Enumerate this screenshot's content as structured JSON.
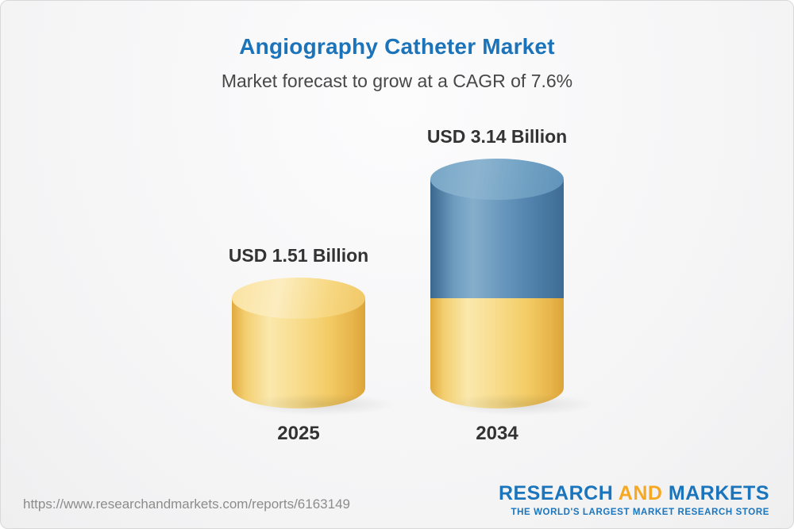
{
  "header": {
    "title": "Angiography Catheter Market",
    "subtitle": "Market forecast to grow at a CAGR of 7.6%"
  },
  "chart_data": {
    "type": "bar",
    "subtype": "3d-cylinder",
    "unit": "USD Billion",
    "cagr_percent": 7.6,
    "categories": [
      "2025",
      "2034"
    ],
    "values": [
      1.51,
      3.14
    ],
    "bars": [
      {
        "category": "2025",
        "label": "USD 1.51 Billion",
        "value": 1.51,
        "segments": [
          {
            "name": "base",
            "value": 1.51,
            "color": "#F6CF6D"
          }
        ]
      },
      {
        "category": "2034",
        "label": "USD 3.14 Billion",
        "value": 3.14,
        "segments": [
          {
            "name": "base",
            "value": 1.51,
            "color": "#F6CF6D"
          },
          {
            "name": "growth",
            "value": 1.63,
            "color": "#4F87B2"
          }
        ]
      }
    ],
    "title": "Angiography Catheter Market",
    "subtitle": "Market forecast to grow at a CAGR of 7.6%",
    "xlabel": "",
    "ylabel": "",
    "legend": "none",
    "grid": false,
    "ylim": [
      0,
      3.5
    ]
  },
  "footer": {
    "url": "https://www.researchandmarkets.com/reports/6163149",
    "logo": {
      "word1": "RESEARCH",
      "word2": " AND ",
      "word3": "MARKETS",
      "tagline": "THE WORLD'S LARGEST MARKET RESEARCH STORE"
    }
  },
  "colors": {
    "title_blue": "#1B73B9",
    "subtitle_gray": "#474747",
    "bar_yellow": "#F6CF6D",
    "bar_blue": "#4F87B2",
    "logo_blue": "#1B75BC",
    "logo_gold": "#F7A823",
    "url_gray": "#8C8C8C"
  }
}
